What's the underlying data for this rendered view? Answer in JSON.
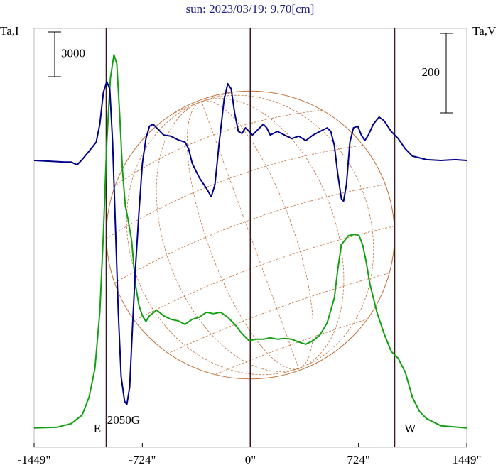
{
  "chart_data": {
    "type": "line",
    "title": "sun: 2023/03/19: 9.70[cm]",
    "y_label": "Ta,I",
    "y2_label": "Ta,V",
    "xlim": [
      -1449,
      1449
    ],
    "xticks": [
      {
        "value": -1449,
        "label": "-1449\""
      },
      {
        "value": -724,
        "label": "-724\""
      },
      {
        "value": 0,
        "label": "0\""
      },
      {
        "value": 724,
        "label": "724\""
      },
      {
        "value": 1449,
        "label": "1449\""
      }
    ],
    "ylim": [
      -1300,
      26800
    ],
    "y2lim": [
      -721,
      332
    ],
    "scale_bar": {
      "value": 3000,
      "axis": "y"
    },
    "scale_bar2": {
      "value": 200,
      "axis": "y2"
    },
    "vlines": [
      -965,
      0,
      965
    ],
    "east_label": "E",
    "west_label": "W",
    "field_label": "2050G",
    "disk_color": "#c0703a",
    "vline_color": "#3a1a1a",
    "series": [
      {
        "color": "#12a012",
        "axis": "y",
        "x": [
          -1449,
          -1295,
          -1200,
          -1128,
          -1081,
          -1042,
          -1009,
          -985,
          -962,
          -938,
          -914,
          -895,
          -876,
          -857,
          -838,
          -819,
          -795,
          -771,
          -747,
          -724,
          -700,
          -676,
          -628,
          -581,
          -533,
          -486,
          -438,
          -390,
          -343,
          -295,
          -248,
          -200,
          -152,
          -105,
          -57,
          -10,
          38,
          86,
          133,
          181,
          228,
          276,
          324,
          371,
          419,
          466,
          514,
          562,
          585,
          609,
          657,
          704,
          728,
          752,
          776,
          800,
          847,
          895,
          942,
          990,
          1038,
          1085,
          1133,
          1180,
          1276,
          1449
        ],
        "values": [
          0,
          48,
          286,
          857,
          2047,
          3951,
          7759,
          12995,
          19183,
          23467,
          25038,
          24419,
          21087,
          17279,
          14899,
          13947,
          12519,
          9663,
          8235,
          7521,
          7140,
          7521,
          7902,
          7521,
          7283,
          7188,
          6950,
          7283,
          7426,
          7759,
          7664,
          7759,
          7426,
          6950,
          6331,
          5855,
          5950,
          5950,
          6045,
          5950,
          5998,
          5950,
          5760,
          5617,
          5855,
          6236,
          7045,
          8711,
          10615,
          12281,
          12900,
          12995,
          12900,
          12281,
          11091,
          9663,
          7759,
          6331,
          5141,
          4665,
          3713,
          2047,
          1095,
          619,
          143,
          0
        ]
      },
      {
        "color": "#00008b",
        "axis": "y2",
        "x": [
          -1449,
          -1342,
          -1247,
          -1200,
          -1161,
          -1128,
          -1081,
          -1033,
          -1009,
          -985,
          -962,
          -942,
          -923,
          -904,
          -885,
          -866,
          -843,
          -828,
          -809,
          -790,
          -771,
          -747,
          -724,
          -700,
          -676,
          -652,
          -628,
          -581,
          -533,
          -486,
          -438,
          -414,
          -390,
          -343,
          -295,
          -262,
          -238,
          -209,
          -176,
          -152,
          -129,
          -105,
          -81,
          -57,
          -33,
          -10,
          14,
          38,
          86,
          109,
          133,
          181,
          228,
          276,
          324,
          371,
          419,
          466,
          514,
          538,
          562,
          585,
          609,
          624,
          643,
          666,
          690,
          719,
          743,
          766,
          790,
          823,
          862,
          895,
          942,
          990,
          1038,
          1085,
          1180,
          1276,
          1371,
          1449
        ],
        "values": [
          0,
          -2,
          -4,
          -4,
          -11,
          2,
          23,
          46,
          91,
          171,
          198,
          180,
          46,
          -168,
          -382,
          -543,
          -605,
          -614,
          -570,
          -418,
          -275,
          -132,
          -7,
          55,
          86,
          91,
          82,
          64,
          61,
          52,
          46,
          29,
          -7,
          -43,
          -70,
          -91,
          -61,
          46,
          154,
          193,
          180,
          118,
          73,
          68,
          82,
          73,
          64,
          73,
          91,
          82,
          64,
          73,
          64,
          55,
          61,
          50,
          64,
          73,
          82,
          73,
          38,
          -34,
          -96,
          -102,
          -61,
          46,
          82,
          86,
          64,
          50,
          64,
          91,
          109,
          100,
          73,
          55,
          29,
          11,
          2,
          0,
          2,
          0
        ]
      }
    ]
  }
}
